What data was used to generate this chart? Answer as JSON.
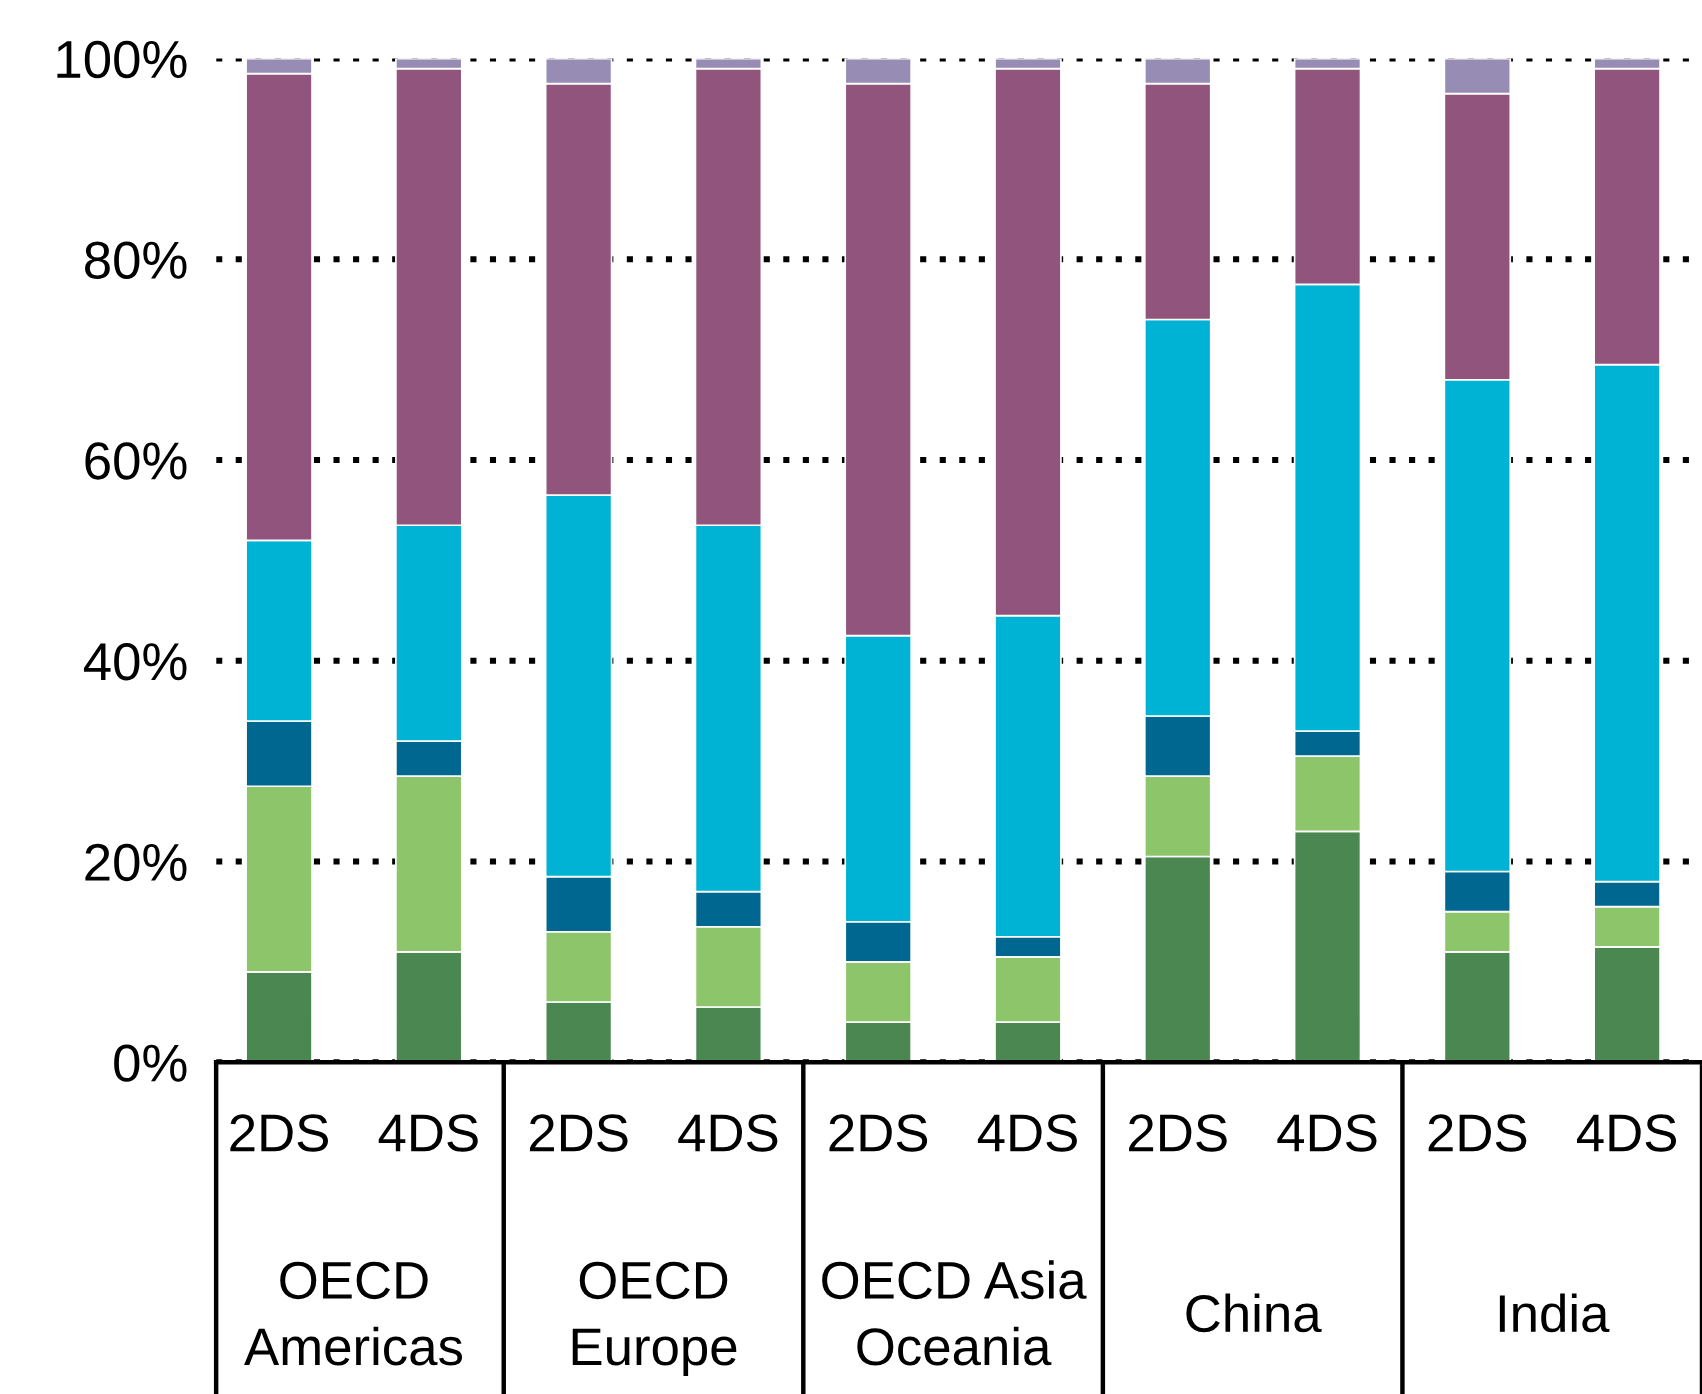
{
  "chart_data": {
    "type": "bar",
    "stacked": true,
    "categories": [
      "2DS",
      "4DS",
      "2DS",
      "4DS",
      "2DS",
      "4DS",
      "2DS",
      "4DS",
      "2DS",
      "4DS"
    ],
    "annotations": [
      "OECD\nAmericas",
      "OECD\nEurope",
      "OECD Asia\nOceania",
      "China",
      "India"
    ],
    "series": [
      {
        "color": "#4a8751",
        "values": [
          9,
          11,
          6,
          5.5,
          4,
          4,
          20.5,
          23,
          11,
          11.5
        ]
      },
      {
        "color": "#8cc56a",
        "values": [
          18.5,
          17.5,
          7,
          8,
          6,
          6.5,
          8,
          7.5,
          4,
          4
        ]
      },
      {
        "color": "#006890",
        "values": [
          6.5,
          3.5,
          5.5,
          3.5,
          4,
          2,
          6,
          2.5,
          4,
          2.5
        ]
      },
      {
        "color": "#00b2d3",
        "values": [
          18,
          21.5,
          38,
          36.5,
          28.5,
          32,
          39.5,
          44.5,
          49,
          51.5
        ]
      },
      {
        "color": "#91547c",
        "values": [
          46.5,
          45.5,
          41,
          45.5,
          55,
          54.5,
          23.5,
          21.5,
          28.5,
          29.5
        ]
      },
      {
        "color": "#968cb4",
        "values": [
          1.5,
          1,
          2.5,
          1,
          2.5,
          1,
          2.5,
          1,
          3.5,
          1
        ]
      }
    ],
    "ylim": [
      0,
      100
    ],
    "yticks": [
      {
        "value": 0,
        "label": "0%"
      },
      {
        "value": 20,
        "label": "20%"
      },
      {
        "value": 40,
        "label": "40%"
      },
      {
        "value": 60,
        "label": "60%"
      },
      {
        "value": 80,
        "label": "80%"
      },
      {
        "value": 100,
        "label": "100%"
      }
    ],
    "grid": "y",
    "legend": false
  }
}
